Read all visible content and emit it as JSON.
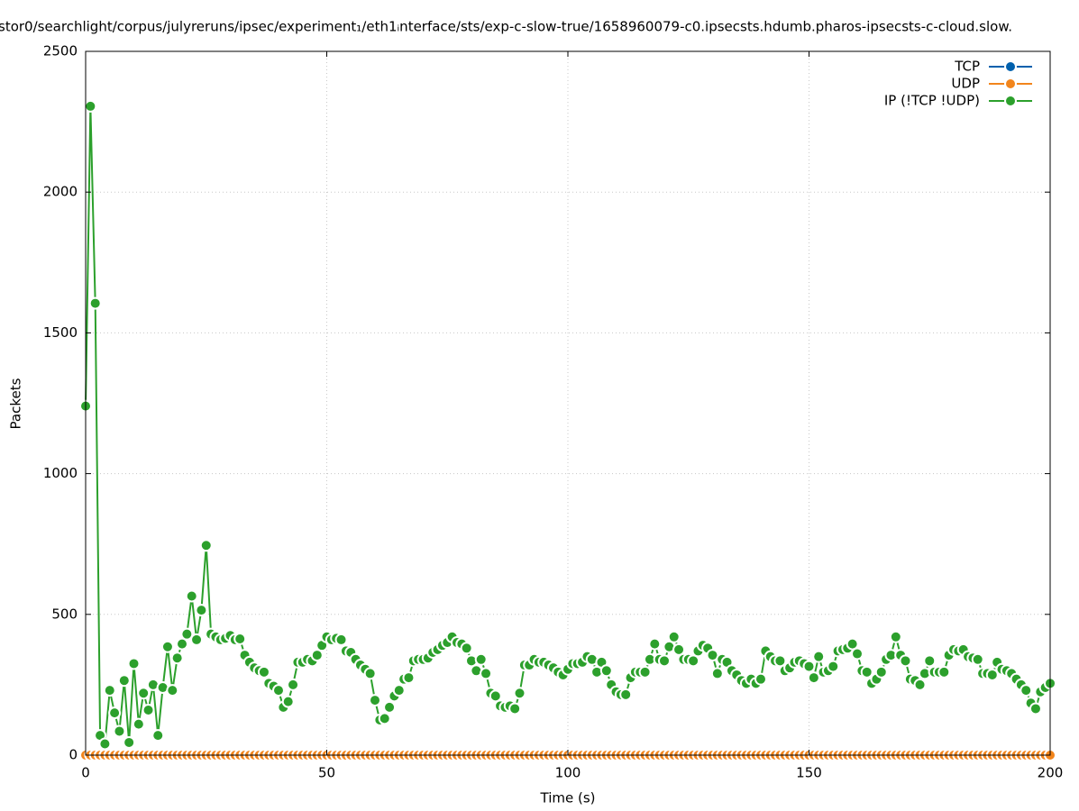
{
  "chart_data": {
    "type": "linepoints",
    "title": "stor0/searchlight/corpus/julyreruns/ipsec/experiment₁/eth1ᵢnterface/sts/exp-c-slow-true/1658960079-c0.ipsecsts.hdumb.pharos-ipsecsts-c-cloud.slow.",
    "x_label": "Time (s)",
    "y_label": "Packets",
    "xlim": [
      0,
      200
    ],
    "xticks": [
      0,
      50,
      100,
      150,
      200
    ],
    "ylim": [
      0,
      2500
    ],
    "yticks": [
      0,
      500,
      1000,
      1500,
      2000,
      2500
    ],
    "grid": true,
    "legend": "top-right",
    "x": [
      0,
      1,
      2,
      3,
      4,
      5,
      6,
      7,
      8,
      9,
      10,
      11,
      12,
      13,
      14,
      15,
      16,
      17,
      18,
      19,
      20,
      21,
      22,
      23,
      24,
      25,
      26,
      27,
      28,
      29,
      30,
      31,
      32,
      33,
      34,
      35,
      36,
      37,
      38,
      39,
      40,
      41,
      42,
      43,
      44,
      45,
      46,
      47,
      48,
      49,
      50,
      51,
      52,
      53,
      54,
      55,
      56,
      57,
      58,
      59,
      60,
      61,
      62,
      63,
      64,
      65,
      66,
      67,
      68,
      69,
      70,
      71,
      72,
      73,
      74,
      75,
      76,
      77,
      78,
      79,
      80,
      81,
      82,
      83,
      84,
      85,
      86,
      87,
      88,
      89,
      90,
      91,
      92,
      93,
      94,
      95,
      96,
      97,
      98,
      99,
      100,
      101,
      102,
      103,
      104,
      105,
      106,
      107,
      108,
      109,
      110,
      111,
      112,
      113,
      114,
      115,
      116,
      117,
      118,
      119,
      120,
      121,
      122,
      123,
      124,
      125,
      126,
      127,
      128,
      129,
      130,
      131,
      132,
      133,
      134,
      135,
      136,
      137,
      138,
      139,
      140,
      141,
      142,
      143,
      144,
      145,
      146,
      147,
      148,
      149,
      150,
      151,
      152,
      153,
      154,
      155,
      156,
      157,
      158,
      159,
      160,
      161,
      162,
      163,
      164,
      165,
      166,
      167,
      168,
      169,
      170,
      171,
      172,
      173,
      174,
      175,
      176,
      177,
      178,
      179,
      180,
      181,
      182,
      183,
      184,
      185,
      186,
      187,
      188,
      189,
      190,
      191,
      192,
      193,
      194,
      195,
      196,
      197,
      198,
      199,
      200
    ],
    "series": [
      {
        "name": "TCP",
        "color": "#0060ad",
        "values": [
          0,
          0,
          0,
          0,
          0,
          0,
          0,
          0,
          0,
          0,
          0,
          0,
          0,
          0,
          0,
          0,
          0,
          0,
          0,
          0,
          0,
          0,
          0,
          0,
          0,
          0,
          0,
          0,
          0,
          0,
          0,
          0,
          0,
          0,
          0,
          0,
          0,
          0,
          0,
          0,
          0,
          0,
          0,
          0,
          0,
          0,
          0,
          0,
          0,
          0,
          0,
          0,
          0,
          0,
          0,
          0,
          0,
          0,
          0,
          0,
          0,
          0,
          0,
          0,
          0,
          0,
          0,
          0,
          0,
          0,
          0,
          0,
          0,
          0,
          0,
          0,
          0,
          0,
          0,
          0,
          0,
          0,
          0,
          0,
          0,
          0,
          0,
          0,
          0,
          0,
          0,
          0,
          0,
          0,
          0,
          0,
          0,
          0,
          0,
          0,
          0,
          0,
          0,
          0,
          0,
          0,
          0,
          0,
          0,
          0,
          0,
          0,
          0,
          0,
          0,
          0,
          0,
          0,
          0,
          0,
          0,
          0,
          0,
          0,
          0,
          0,
          0,
          0,
          0,
          0,
          0,
          0,
          0,
          0,
          0,
          0,
          0,
          0,
          0,
          0,
          0,
          0,
          0,
          0,
          0,
          0,
          0,
          0,
          0,
          0,
          0,
          0,
          0,
          0,
          0,
          0,
          0,
          0,
          0,
          0,
          0,
          0,
          0,
          0,
          0,
          0,
          0,
          0,
          0,
          0,
          0,
          0,
          0,
          0,
          0,
          0,
          0,
          0,
          0,
          0,
          0,
          0,
          0,
          0,
          0,
          0,
          0,
          0,
          0,
          0,
          0,
          0,
          0,
          0,
          0,
          0,
          0,
          0,
          0,
          0,
          0
        ]
      },
      {
        "name": "UDP",
        "color": "#f2851c",
        "values": [
          0,
          0,
          0,
          0,
          0,
          0,
          0,
          0,
          0,
          0,
          0,
          0,
          0,
          0,
          0,
          0,
          0,
          0,
          0,
          0,
          0,
          0,
          0,
          0,
          0,
          0,
          0,
          0,
          0,
          0,
          0,
          0,
          0,
          0,
          0,
          0,
          0,
          0,
          0,
          0,
          0,
          0,
          0,
          0,
          0,
          0,
          0,
          0,
          0,
          0,
          0,
          0,
          0,
          0,
          0,
          0,
          0,
          0,
          0,
          0,
          0,
          0,
          0,
          0,
          0,
          0,
          0,
          0,
          0,
          0,
          0,
          0,
          0,
          0,
          0,
          0,
          0,
          0,
          0,
          0,
          0,
          0,
          0,
          0,
          0,
          0,
          0,
          0,
          0,
          0,
          0,
          0,
          0,
          0,
          0,
          0,
          0,
          0,
          0,
          0,
          0,
          0,
          0,
          0,
          0,
          0,
          0,
          0,
          0,
          0,
          0,
          0,
          0,
          0,
          0,
          0,
          0,
          0,
          0,
          0,
          0,
          0,
          0,
          0,
          0,
          0,
          0,
          0,
          0,
          0,
          0,
          0,
          0,
          0,
          0,
          0,
          0,
          0,
          0,
          0,
          0,
          0,
          0,
          0,
          0,
          0,
          0,
          0,
          0,
          0,
          0,
          0,
          0,
          0,
          0,
          0,
          0,
          0,
          0,
          0,
          0,
          0,
          0,
          0,
          0,
          0,
          0,
          0,
          0,
          0,
          0,
          0,
          0,
          0,
          0,
          0,
          0,
          0,
          0,
          0,
          0,
          0,
          0,
          0,
          0,
          0,
          0,
          0,
          0,
          0,
          0,
          0,
          0,
          0,
          0,
          0,
          0,
          0,
          0,
          0,
          0
        ]
      },
      {
        "name": "IP (!TCP  !UDP)",
        "color": "#2ca02c",
        "values": [
          1240,
          2305,
          1605,
          70,
          40,
          230,
          150,
          85,
          265,
          45,
          325,
          110,
          220,
          160,
          250,
          70,
          240,
          385,
          230,
          345,
          395,
          430,
          565,
          410,
          515,
          745,
          430,
          420,
          410,
          415,
          425,
          410,
          413,
          355,
          330,
          310,
          300,
          295,
          255,
          245,
          230,
          170,
          190,
          250,
          330,
          330,
          340,
          335,
          355,
          390,
          420,
          410,
          415,
          410,
          370,
          365,
          340,
          320,
          305,
          290,
          195,
          125,
          130,
          170,
          210,
          230,
          270,
          275,
          335,
          340,
          340,
          345,
          365,
          375,
          390,
          400,
          420,
          400,
          395,
          380,
          335,
          300,
          340,
          290,
          220,
          210,
          175,
          170,
          175,
          165,
          220,
          320,
          320,
          340,
          330,
          330,
          320,
          310,
          295,
          285,
          305,
          325,
          325,
          330,
          350,
          340,
          295,
          330,
          300,
          250,
          225,
          215,
          215,
          275,
          295,
          295,
          295,
          340,
          395,
          340,
          335,
          385,
          420,
          375,
          340,
          340,
          335,
          370,
          390,
          380,
          355,
          290,
          340,
          330,
          300,
          285,
          265,
          255,
          270,
          255,
          270,
          370,
          350,
          335,
          335,
          300,
          310,
          330,
          335,
          325,
          315,
          275,
          350,
          295,
          300,
          315,
          370,
          375,
          380,
          395,
          360,
          300,
          295,
          255,
          270,
          295,
          340,
          355,
          420,
          355,
          335,
          270,
          265,
          250,
          290,
          335,
          295,
          295,
          295,
          355,
          375,
          370,
          375,
          350,
          345,
          340,
          290,
          290,
          285,
          330,
          305,
          300,
          290,
          270,
          250,
          230,
          185,
          165,
          225,
          240,
          255
        ]
      }
    ]
  }
}
